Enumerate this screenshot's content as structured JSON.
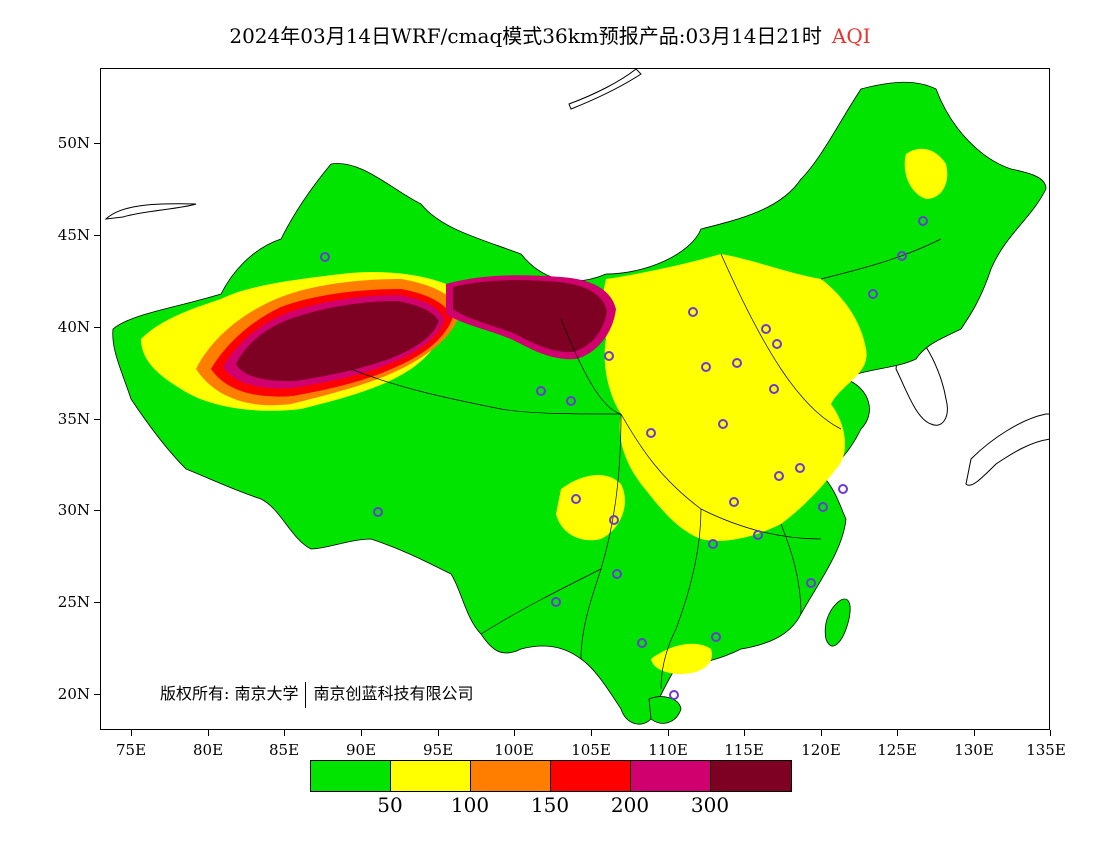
{
  "title": {
    "main": "2024年03月14日WRF/cmaq模式36km预报产品:03月14日21时",
    "variable": "AQI",
    "variable_color": "#e8322c"
  },
  "map": {
    "region": "China",
    "lon_range": [
      73,
      135
    ],
    "lat_range": [
      18,
      54
    ],
    "x_ticks": [
      "75E",
      "80E",
      "85E",
      "90E",
      "95E",
      "100E",
      "105E",
      "110E",
      "115E",
      "120E",
      "125E",
      "130E",
      "135E"
    ],
    "y_ticks": [
      "50N",
      "45N",
      "40N",
      "35N",
      "30N",
      "25N",
      "20N"
    ],
    "station_marker_color": "#6a3ad6"
  },
  "copyright": {
    "owner_label": "版权所有:",
    "org1": "南京大学",
    "org2": "南京创蓝科技有限公司"
  },
  "legend": {
    "colors": [
      "#00e400",
      "#ffff00",
      "#ff7e00",
      "#ff0000",
      "#d0006e",
      "#7e0023"
    ],
    "labels": [
      "50",
      "100",
      "150",
      "200",
      "300"
    ]
  }
}
